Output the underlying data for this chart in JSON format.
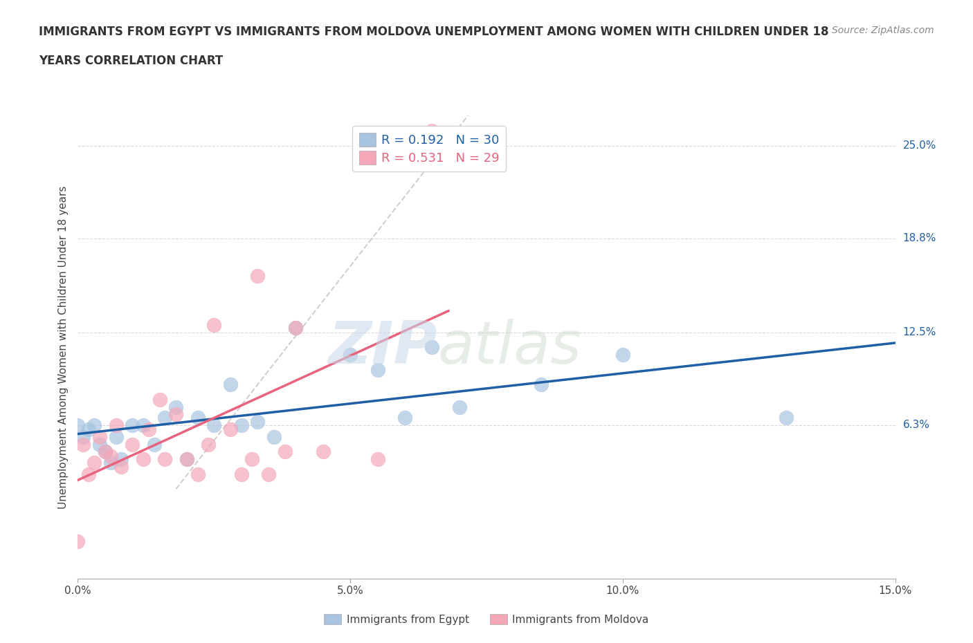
{
  "title_line1": "IMMIGRANTS FROM EGYPT VS IMMIGRANTS FROM MOLDOVA UNEMPLOYMENT AMONG WOMEN WITH CHILDREN UNDER 18",
  "title_line2": "YEARS CORRELATION CHART",
  "source": "Source: ZipAtlas.com",
  "ylabel": "Unemployment Among Women with Children Under 18 years",
  "xlim": [
    0.0,
    0.15
  ],
  "ylim": [
    -0.04,
    0.27
  ],
  "ytick_labels_right": [
    "25.0%",
    "18.8%",
    "12.5%",
    "6.3%"
  ],
  "ytick_vals_right": [
    0.25,
    0.188,
    0.125,
    0.063
  ],
  "egypt_color": "#a8c4e0",
  "moldova_color": "#f4a7b9",
  "egypt_R": 0.192,
  "egypt_N": 30,
  "moldova_R": 0.531,
  "moldova_N": 29,
  "egypt_scatter_x": [
    0.0,
    0.001,
    0.002,
    0.003,
    0.004,
    0.005,
    0.006,
    0.007,
    0.008,
    0.01,
    0.012,
    0.014,
    0.016,
    0.018,
    0.02,
    0.022,
    0.025,
    0.028,
    0.03,
    0.033,
    0.036,
    0.04,
    0.05,
    0.055,
    0.06,
    0.065,
    0.07,
    0.085,
    0.1,
    0.13
  ],
  "egypt_scatter_y": [
    0.063,
    0.055,
    0.06,
    0.063,
    0.05,
    0.045,
    0.038,
    0.055,
    0.04,
    0.063,
    0.063,
    0.05,
    0.068,
    0.075,
    0.04,
    0.068,
    0.063,
    0.09,
    0.063,
    0.065,
    0.055,
    0.128,
    0.11,
    0.1,
    0.068,
    0.115,
    0.075,
    0.09,
    0.11,
    0.068
  ],
  "moldova_scatter_x": [
    0.0,
    0.001,
    0.002,
    0.003,
    0.004,
    0.005,
    0.006,
    0.007,
    0.008,
    0.01,
    0.012,
    0.013,
    0.015,
    0.016,
    0.018,
    0.02,
    0.022,
    0.024,
    0.025,
    0.028,
    0.03,
    0.032,
    0.033,
    0.035,
    0.038,
    0.04,
    0.045,
    0.055,
    0.065
  ],
  "moldova_scatter_y": [
    -0.015,
    0.05,
    0.03,
    0.038,
    0.055,
    0.045,
    0.042,
    0.063,
    0.035,
    0.05,
    0.04,
    0.06,
    0.08,
    0.04,
    0.07,
    0.04,
    0.03,
    0.05,
    0.13,
    0.06,
    0.03,
    0.04,
    0.163,
    0.03,
    0.045,
    0.128,
    0.045,
    0.04,
    0.26
  ],
  "blue_line_color": "#1f5fa6",
  "pink_line_color": "#e8637d",
  "gray_line_color": "#d0c8c8",
  "background_color": "#ffffff",
  "grid_color": "#d8d8d8",
  "watermark_zip": "ZIP",
  "watermark_atlas": "atlas"
}
